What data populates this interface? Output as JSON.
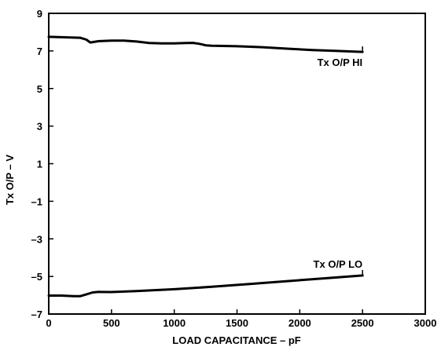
{
  "chart_data": {
    "type": "line",
    "xlabel": "LOAD CAPACITANCE – pF",
    "ylabel": "Tx O/P – V",
    "xlim": [
      0,
      3000
    ],
    "ylim": [
      -7,
      9
    ],
    "x_ticks": [
      "0",
      "500",
      "1000",
      "1500",
      "2000",
      "2500",
      "3000"
    ],
    "y_ticks": [
      "9",
      "7",
      "5",
      "3",
      "1",
      "–1",
      "–3",
      "–5",
      "–7"
    ],
    "grid": false,
    "series": [
      {
        "name": "Tx  O/P HI",
        "x": [
          0,
          150,
          250,
          300,
          330,
          400,
          500,
          600,
          700,
          800,
          900,
          1000,
          1100,
          1150,
          1200,
          1250,
          1300,
          1500,
          1700,
          1900,
          2100,
          2300,
          2500
        ],
        "y": [
          7.75,
          7.72,
          7.7,
          7.6,
          7.45,
          7.52,
          7.55,
          7.55,
          7.5,
          7.42,
          7.4,
          7.4,
          7.42,
          7.43,
          7.38,
          7.3,
          7.28,
          7.25,
          7.2,
          7.12,
          7.05,
          7.0,
          6.95
        ]
      },
      {
        "name": "Tx  O/P LO",
        "x": [
          0,
          100,
          200,
          250,
          300,
          350,
          400,
          500,
          700,
          1000,
          1300,
          1600,
          1900,
          2200,
          2500
        ],
        "y": [
          -6.02,
          -6.02,
          -6.05,
          -6.05,
          -5.95,
          -5.85,
          -5.82,
          -5.83,
          -5.78,
          -5.68,
          -5.55,
          -5.4,
          -5.25,
          -5.1,
          -4.95
        ]
      }
    ]
  }
}
